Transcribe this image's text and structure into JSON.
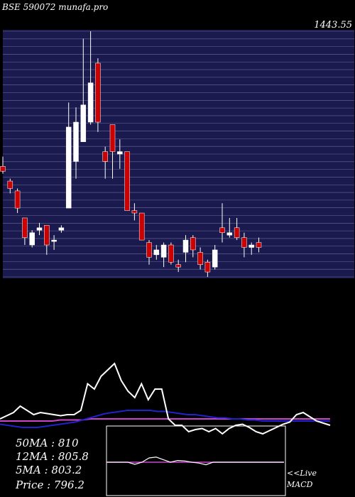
{
  "title": "BSE 590072  munafa.pro",
  "top_price_label": "1443.55",
  "stats": {
    "ma50_label": "50MA : 810",
    "ma12_label": "12MA : 805.8",
    "ma5_label": "5MA : 803.2",
    "price_label": "Price   : 796.2"
  },
  "macd_label_1": "<<Live",
  "macd_label_2": "MACD",
  "colors": {
    "background": "#000000",
    "price_panel": "#1a1a4e",
    "gridline": "#6a6a9a",
    "up_candle": "#ffffff",
    "down_candle": "#cc0000",
    "ma_line_white": "#ffffff",
    "ma_line_blue": "#2222cc",
    "ma_line_violet": "#cc44cc",
    "macd_line": "#ffffff",
    "signal_line": "#cc44cc",
    "macd_panel_border": "#ffffff"
  },
  "chart_data": {
    "type": "candlestick",
    "y_top_label": 1443.55,
    "candles": [
      {
        "o": 0.43,
        "c": 0.45,
        "h": 0.49,
        "l": 0.42,
        "dir": "down"
      },
      {
        "o": 0.39,
        "c": 0.36,
        "h": 0.4,
        "l": 0.34,
        "dir": "down"
      },
      {
        "o": 0.35,
        "c": 0.28,
        "h": 0.36,
        "l": 0.26,
        "dir": "down"
      },
      {
        "o": 0.24,
        "c": 0.16,
        "h": 0.24,
        "l": 0.13,
        "dir": "down"
      },
      {
        "o": 0.18,
        "c": 0.13,
        "h": 0.19,
        "l": 0.12,
        "dir": "up"
      },
      {
        "o": 0.2,
        "c": 0.19,
        "h": 0.22,
        "l": 0.17,
        "dir": "up"
      },
      {
        "o": 0.21,
        "c": 0.13,
        "h": 0.21,
        "l": 0.09,
        "dir": "down"
      },
      {
        "o": 0.15,
        "c": 0.15,
        "h": 0.17,
        "l": 0.11,
        "dir": "up"
      },
      {
        "o": 0.19,
        "c": 0.2,
        "h": 0.21,
        "l": 0.18,
        "dir": "up"
      },
      {
        "o": 0.28,
        "c": 0.61,
        "h": 0.71,
        "l": 0.28,
        "dir": "up"
      },
      {
        "o": 0.47,
        "c": 0.63,
        "h": 0.69,
        "l": 0.4,
        "dir": "up"
      },
      {
        "o": 0.55,
        "c": 0.7,
        "h": 0.97,
        "l": 0.55,
        "dir": "up"
      },
      {
        "o": 0.63,
        "c": 0.79,
        "h": 1.0,
        "l": 0.62,
        "dir": "up"
      },
      {
        "o": 0.87,
        "c": 0.63,
        "h": 0.89,
        "l": 0.59,
        "dir": "down"
      },
      {
        "o": 0.51,
        "c": 0.47,
        "h": 0.53,
        "l": 0.4,
        "dir": "down"
      },
      {
        "o": 0.62,
        "c": 0.51,
        "h": 0.62,
        "l": 0.4,
        "dir": "down"
      },
      {
        "o": 0.5,
        "c": 0.51,
        "h": 0.56,
        "l": 0.44,
        "dir": "up"
      },
      {
        "o": 0.51,
        "c": 0.27,
        "h": 0.51,
        "l": 0.27,
        "dir": "down"
      },
      {
        "o": 0.27,
        "c": 0.26,
        "h": 0.3,
        "l": 0.23,
        "dir": "down"
      },
      {
        "o": 0.26,
        "c": 0.15,
        "h": 0.26,
        "l": 0.15,
        "dir": "down"
      },
      {
        "o": 0.14,
        "c": 0.08,
        "h": 0.15,
        "l": 0.05,
        "dir": "down"
      },
      {
        "o": 0.09,
        "c": 0.11,
        "h": 0.13,
        "l": 0.07,
        "dir": "up"
      },
      {
        "o": 0.08,
        "c": 0.13,
        "h": 0.14,
        "l": 0.04,
        "dir": "up"
      },
      {
        "o": 0.13,
        "c": 0.06,
        "h": 0.14,
        "l": 0.05,
        "dir": "down"
      },
      {
        "o": 0.05,
        "c": 0.04,
        "h": 0.07,
        "l": 0.02,
        "dir": "down"
      },
      {
        "o": 0.1,
        "c": 0.15,
        "h": 0.17,
        "l": 0.06,
        "dir": "up"
      },
      {
        "o": 0.16,
        "c": 0.11,
        "h": 0.17,
        "l": 0.08,
        "dir": "down"
      },
      {
        "o": 0.1,
        "c": 0.05,
        "h": 0.12,
        "l": 0.03,
        "dir": "down"
      },
      {
        "o": 0.06,
        "c": 0.02,
        "h": 0.07,
        "l": 0.0,
        "dir": "down"
      },
      {
        "o": 0.04,
        "c": 0.11,
        "h": 0.13,
        "l": 0.03,
        "dir": "up"
      },
      {
        "o": 0.2,
        "c": 0.18,
        "h": 0.3,
        "l": 0.14,
        "dir": "down"
      },
      {
        "o": 0.18,
        "c": 0.17,
        "h": 0.24,
        "l": 0.16,
        "dir": "up"
      },
      {
        "o": 0.2,
        "c": 0.16,
        "h": 0.24,
        "l": 0.15,
        "dir": "down"
      },
      {
        "o": 0.16,
        "c": 0.12,
        "h": 0.18,
        "l": 0.08,
        "dir": "down"
      },
      {
        "o": 0.12,
        "c": 0.13,
        "h": 0.14,
        "l": 0.09,
        "dir": "up"
      },
      {
        "o": 0.14,
        "c": 0.12,
        "h": 0.16,
        "l": 0.1,
        "dir": "down"
      }
    ],
    "ma_white": [
      0.0,
      0.03,
      0.06,
      0.12,
      0.08,
      0.04,
      0.06,
      0.05,
      0.04,
      0.03,
      0.04,
      0.04,
      0.08,
      0.33,
      0.28,
      0.4,
      0.46,
      0.52,
      0.36,
      0.26,
      0.2,
      0.33,
      0.18,
      0.28,
      0.28,
      0.0,
      -0.06,
      -0.06,
      -0.12,
      -0.1,
      -0.09,
      -0.12,
      -0.09,
      -0.14,
      -0.09,
      -0.06,
      -0.05,
      -0.08,
      -0.12,
      -0.14,
      -0.11,
      -0.08,
      -0.05,
      -0.03,
      0.04,
      0.06,
      0.02,
      -0.02,
      -0.04,
      -0.06
    ],
    "ma_blue": [
      -0.05,
      -0.06,
      -0.07,
      -0.08,
      -0.08,
      -0.08,
      -0.07,
      -0.06,
      -0.05,
      -0.04,
      -0.03,
      -0.01,
      0.01,
      0.03,
      0.05,
      0.06,
      0.07,
      0.08,
      0.08,
      0.08,
      0.08,
      0.07,
      0.07,
      0.06,
      0.05,
      0.04,
      0.04,
      0.03,
      0.02,
      0.01,
      0.01,
      0.0,
      0.0,
      -0.01,
      -0.01,
      -0.02,
      -0.02,
      -0.02,
      -0.02,
      -0.02,
      -0.02,
      -0.02,
      -0.02,
      -0.02,
      -0.02
    ],
    "ma_violet": [
      -0.02,
      -0.02,
      -0.02,
      -0.02,
      -0.02,
      -0.02,
      -0.02,
      -0.02,
      -0.01,
      -0.01,
      -0.01,
      -0.01,
      0.0,
      0.0,
      0.0,
      0.0,
      0.0,
      0.0,
      0.0,
      0.0,
      0.0,
      0.0,
      0.0,
      0.0,
      0.0,
      0.0,
      0.0,
      0.0,
      0.0,
      0.0,
      0.0,
      0.0,
      0.0,
      0.0,
      0.0,
      0.0,
      0.0,
      0.0,
      0.0,
      0.0,
      0.0,
      0.0,
      0.0,
      0.0,
      0.0
    ],
    "macd": [
      0.0,
      0.0,
      0.0,
      0.0,
      -0.05,
      0.0,
      0.1,
      0.12,
      0.06,
      0.0,
      0.04,
      0.03,
      0.0,
      -0.02,
      -0.06,
      0.0,
      0.0,
      0.0,
      0.0,
      0.0,
      0.0,
      0.0,
      0.0,
      0.0,
      0.0,
      0.0
    ],
    "signal": [
      0.0,
      0.0,
      0.0,
      0.0,
      0.0,
      0.0,
      0.0,
      0.0,
      0.0,
      0.0,
      0.0,
      0.0,
      0.0,
      0.0,
      0.0,
      0.0,
      0.0,
      0.0,
      0.0,
      0.0,
      0.0,
      0.0,
      0.0,
      0.0,
      0.0,
      0.0
    ]
  }
}
